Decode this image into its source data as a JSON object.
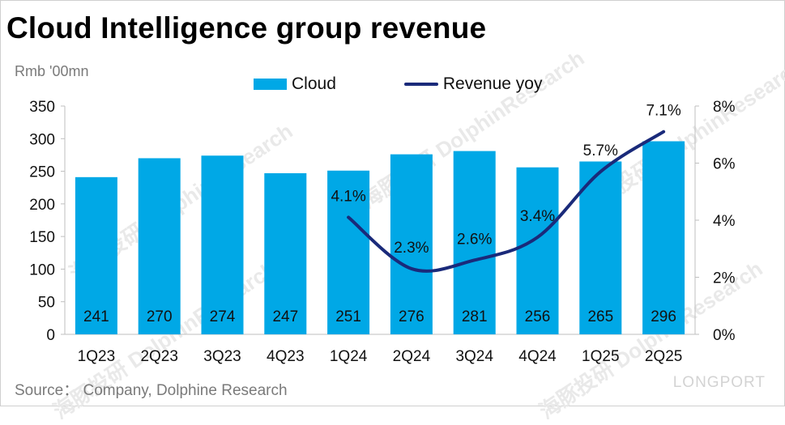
{
  "title": "Cloud Intelligence group revenue",
  "unit_label": "Rmb '00mn",
  "source": "Source：  Company, Dolphine Research",
  "legend": {
    "bar": "Cloud",
    "line": "Revenue yoy"
  },
  "colors": {
    "bar": "#00a8e6",
    "line": "#1a2a7a"
  },
  "watermark": "海豚投研 DolphinResearch",
  "brand": "LONGPORT",
  "chart_data": {
    "type": "bar",
    "categories": [
      "1Q23",
      "2Q23",
      "3Q23",
      "4Q23",
      "1Q24",
      "2Q24",
      "3Q24",
      "4Q24",
      "1Q25",
      "2Q25"
    ],
    "series": [
      {
        "name": "Cloud",
        "type": "bar",
        "axis": "left",
        "values": [
          241,
          270,
          274,
          247,
          251,
          276,
          281,
          256,
          265,
          296
        ],
        "labels": [
          "241",
          "270",
          "274",
          "247",
          "251",
          "276",
          "281",
          "256",
          "265",
          "296"
        ]
      },
      {
        "name": "Revenue yoy",
        "type": "line",
        "axis": "right",
        "values": [
          null,
          null,
          null,
          null,
          4.1,
          2.3,
          2.6,
          3.4,
          5.7,
          7.1
        ],
        "labels": [
          "",
          "",
          "",
          "",
          "4.1%",
          "2.3%",
          "2.6%",
          "3.4%",
          "5.7%",
          "7.1%"
        ]
      }
    ],
    "ylim": [
      0,
      350
    ],
    "yticks": [
      "0",
      "50",
      "100",
      "150",
      "200",
      "250",
      "300",
      "350"
    ],
    "y2lim": [
      0,
      8
    ],
    "y2ticks": [
      "0%",
      "2%",
      "4%",
      "6%",
      "8%"
    ],
    "ylabel": "Rmb '00mn",
    "grid": false,
    "legend_position": "top"
  }
}
